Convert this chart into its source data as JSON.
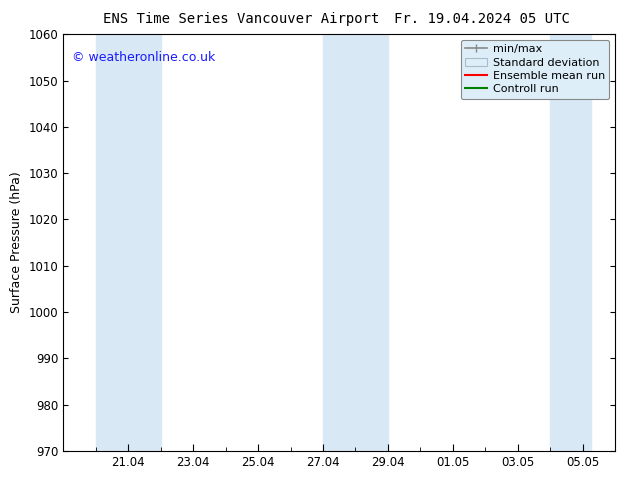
{
  "title_left": "ENS Time Series Vancouver Airport",
  "title_right": "Fr. 19.04.2024 05 UTC",
  "ylabel": "Surface Pressure (hPa)",
  "ylim": [
    970,
    1060
  ],
  "yticks": [
    970,
    980,
    990,
    1000,
    1010,
    1020,
    1030,
    1040,
    1050,
    1060
  ],
  "xlim": [
    0,
    16.25
  ],
  "xtick_labels": [
    "21.04",
    "23.04",
    "25.04",
    "27.04",
    "29.04",
    "01.05",
    "03.05",
    "05.05"
  ],
  "xtick_positions_days": [
    2,
    4,
    6,
    8,
    10,
    12,
    14,
    16
  ],
  "weekend_bands": [
    {
      "start_day": 1.0,
      "end_day": 3.0
    },
    {
      "start_day": 8.0,
      "end_day": 10.0
    },
    {
      "start_day": 15.0,
      "end_day": 16.25
    }
  ],
  "band_color": "#d8e8f5",
  "background_color": "#ffffff",
  "watermark": "© weatheronline.co.uk",
  "watermark_color": "#1a1aff",
  "legend_items": [
    {
      "label": "min/max",
      "color": "#aaaaaa",
      "type": "errorbar"
    },
    {
      "label": "Standard deviation",
      "color": "#c8dded",
      "type": "fill"
    },
    {
      "label": "Ensemble mean run",
      "color": "#ff0000",
      "type": "line"
    },
    {
      "label": "Controll run",
      "color": "#008000",
      "type": "line"
    }
  ],
  "tick_fontsize": 8.5,
  "label_fontsize": 9,
  "title_fontsize": 10,
  "legend_fontsize": 8,
  "legend_bg": "#ddeef8"
}
